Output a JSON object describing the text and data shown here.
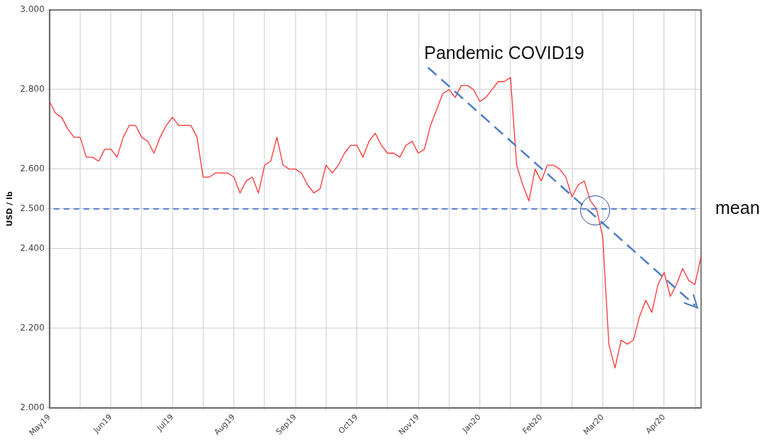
{
  "chart_data": {
    "type": "line",
    "ylabel": "USD / lb",
    "ylim": [
      2.0,
      3.0
    ],
    "categories": [
      "May19",
      null,
      null,
      null,
      null,
      null,
      null,
      null,
      null,
      null,
      "Jun19",
      null,
      null,
      null,
      null,
      null,
      null,
      null,
      null,
      null,
      "Jul19",
      null,
      null,
      null,
      null,
      null,
      null,
      null,
      null,
      null,
      "Aug19",
      null,
      null,
      null,
      null,
      null,
      null,
      null,
      null,
      null,
      "Sep19",
      null,
      null,
      null,
      null,
      null,
      null,
      null,
      null,
      null,
      "Oct19",
      null,
      null,
      null,
      null,
      null,
      null,
      null,
      null,
      null,
      "Nov19",
      null,
      null,
      null,
      null,
      null,
      null,
      null,
      null,
      null,
      "Jan20",
      null,
      null,
      null,
      null,
      null,
      null,
      null,
      null,
      null,
      "Feb20",
      null,
      null,
      null,
      null,
      null,
      null,
      null,
      null,
      null,
      "Mar20",
      null,
      null,
      null,
      null,
      null,
      null,
      null,
      null,
      null,
      "Apr20",
      null,
      null,
      null,
      null,
      null,
      null
    ],
    "yticks": [
      {
        "value": 2.0,
        "label": "2.000"
      },
      {
        "value": 2.2,
        "label": "2.200"
      },
      {
        "value": 2.4,
        "label": "2.400"
      },
      {
        "value": 2.5,
        "label": "2.500"
      },
      {
        "value": 2.6,
        "label": "2.600"
      },
      {
        "value": 2.8,
        "label": "2.800"
      },
      {
        "value": 3.0,
        "label": "3.000"
      }
    ],
    "grid": true,
    "legend": false,
    "marker": "none",
    "line_style": "solid",
    "series": [
      {
        "color": "#ff3333",
        "values": [
          2.77,
          2.74,
          2.73,
          2.7,
          2.68,
          2.68,
          2.63,
          2.63,
          2.62,
          2.65,
          2.65,
          2.63,
          2.68,
          2.71,
          2.71,
          2.68,
          2.67,
          2.64,
          2.68,
          2.71,
          2.73,
          2.71,
          2.71,
          2.71,
          2.68,
          2.58,
          2.58,
          2.59,
          2.59,
          2.59,
          2.58,
          2.54,
          2.57,
          2.58,
          2.54,
          2.61,
          2.62,
          2.68,
          2.61,
          2.6,
          2.6,
          2.59,
          2.56,
          2.54,
          2.55,
          2.61,
          2.59,
          2.61,
          2.64,
          2.66,
          2.66,
          2.63,
          2.67,
          2.69,
          2.66,
          2.64,
          2.64,
          2.63,
          2.66,
          2.67,
          2.64,
          2.65,
          2.71,
          2.75,
          2.79,
          2.8,
          2.78,
          2.81,
          2.81,
          2.8,
          2.77,
          2.78,
          2.8,
          2.82,
          2.82,
          2.83,
          2.61,
          2.56,
          2.52,
          2.6,
          2.57,
          2.61,
          2.61,
          2.6,
          2.58,
          2.53,
          2.56,
          2.57,
          2.52,
          2.5,
          2.43,
          2.16,
          2.1,
          2.17,
          2.16,
          2.17,
          2.23,
          2.27,
          2.24,
          2.31,
          2.34,
          2.28,
          2.31,
          2.35,
          2.32,
          2.31,
          2.38
        ]
      }
    ],
    "ref_lines": [
      {
        "axis": "y",
        "value": 2.5,
        "label": "mean",
        "color": "#4472c4",
        "line_style": "dashed"
      }
    ],
    "annotations": [
      "Pandemic COVID19"
    ]
  }
}
